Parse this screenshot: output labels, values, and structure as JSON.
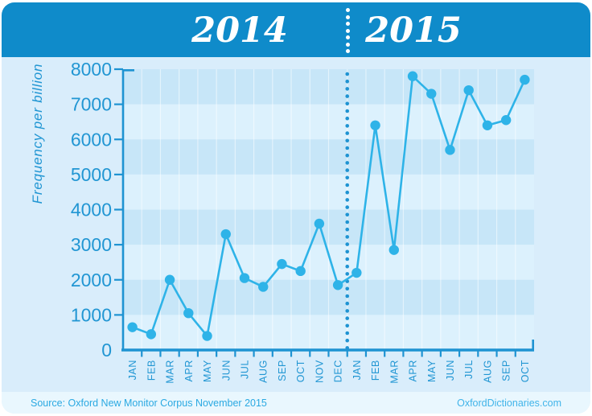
{
  "header": {
    "years": [
      "2014",
      "2015"
    ]
  },
  "y_axis_title": "Frequency per billion",
  "footer": {
    "source": "Source: Oxford New Monitor Corpus November 2015",
    "site": "OxfordDictionaries.com"
  },
  "colors": {
    "header_bg": "#0f8bca",
    "body_bg": "#d9edfb",
    "band_dark": "#c7e6f8",
    "band_light": "#dcf1fd",
    "footer_bg": "#e9f7fe",
    "axis": "#1e93d2",
    "tick_label": "#2196d3",
    "line": "#2eb3e8",
    "grid": "rgba(255,255,255,0.5)",
    "source_text": "#2aa9e2",
    "site_text": "#40b4e9"
  },
  "chart_data": {
    "type": "line",
    "title": "",
    "xlabel": "",
    "ylabel": "Frequency per billion",
    "ylim": [
      0,
      8000
    ],
    "y_ticks": [
      0,
      1000,
      2000,
      3000,
      4000,
      5000,
      6000,
      7000,
      8000
    ],
    "legend_position": "none",
    "grid": "alternating 1000-unit horizontal bands with faint monthly vertical gridlines",
    "year_divider": "dotted vertical line between DEC 2014 and JAN 2015",
    "groups": [
      {
        "year": "2014",
        "months": [
          "JAN",
          "FEB",
          "MAR",
          "APR",
          "MAY",
          "JUN",
          "JUL",
          "AUG",
          "SEP",
          "OCT",
          "NOV",
          "DEC"
        ]
      },
      {
        "year": "2015",
        "months": [
          "JAN",
          "FEB",
          "MAR",
          "APR",
          "MAY",
          "JUN",
          "JUL",
          "AUG",
          "SEP",
          "OCT"
        ]
      }
    ],
    "categories": [
      "JAN 2014",
      "FEB 2014",
      "MAR 2014",
      "APR 2014",
      "MAY 2014",
      "JUN 2014",
      "JUL 2014",
      "AUG 2014",
      "SEP 2014",
      "OCT 2014",
      "NOV 2014",
      "DEC 2014",
      "JAN 2015",
      "FEB 2015",
      "MAR 2015",
      "APR 2015",
      "MAY 2015",
      "JUN 2015",
      "JUL 2015",
      "AUG 2015",
      "SEP 2015",
      "OCT 2015"
    ],
    "series": [
      {
        "name": "Frequency per billion",
        "values": [
          650,
          450,
          2000,
          1050,
          400,
          3300,
          2050,
          1800,
          2450,
          2250,
          3600,
          1850,
          2200,
          6400,
          2850,
          7800,
          7300,
          5700,
          7400,
          6400,
          6550,
          7700
        ]
      }
    ]
  }
}
